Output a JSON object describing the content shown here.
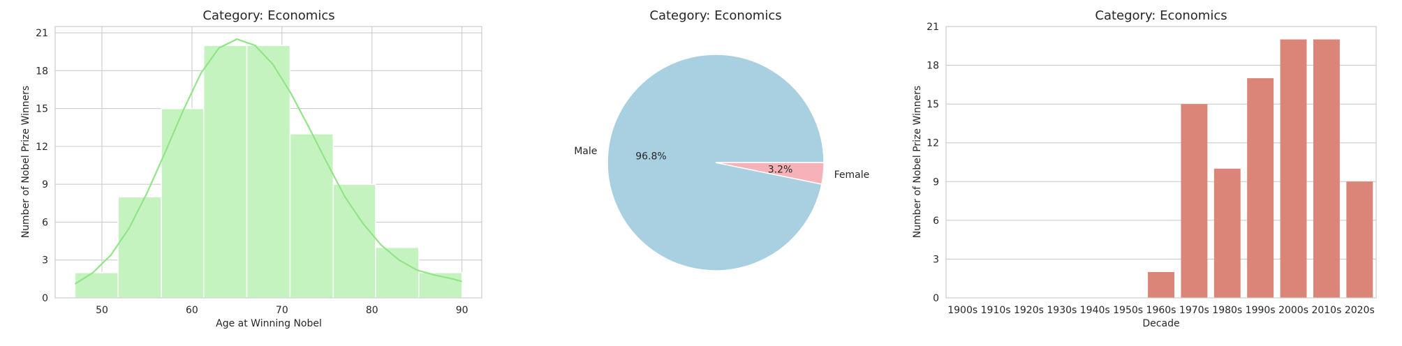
{
  "chart_data": [
    {
      "type": "bar",
      "subtype": "histogram-with-kde",
      "title": "Category: Economics",
      "xlabel": "Age at Winning Nobel",
      "ylabel": "Number of Nobel Prize Winners",
      "bin_edges": [
        47,
        51.8,
        56.6,
        61.3,
        66.1,
        70.9,
        75.7,
        80.4,
        85.2,
        90
      ],
      "values": [
        2,
        8,
        15,
        20,
        20,
        13,
        9,
        4,
        2
      ],
      "kde": {
        "x": [
          47,
          49,
          51,
          53,
          55,
          57,
          59,
          61,
          63,
          65,
          67,
          69,
          71,
          73,
          75,
          77,
          79,
          81,
          83,
          85,
          87,
          89,
          90
        ],
        "y": [
          1.1,
          2.0,
          3.4,
          5.5,
          8.3,
          11.5,
          14.8,
          17.8,
          19.8,
          20.5,
          20.0,
          18.5,
          16.2,
          13.5,
          10.7,
          8.0,
          5.9,
          4.2,
          3.0,
          2.2,
          1.8,
          1.5,
          1.3
        ]
      },
      "xticks": [
        50,
        60,
        70,
        80,
        90
      ],
      "yticks": [
        0,
        3,
        6,
        9,
        12,
        15,
        18,
        21
      ],
      "xlim": [
        44.8,
        92.2
      ],
      "ylim": [
        0,
        21.5
      ],
      "grid": true,
      "colors": {
        "bar": "#c5f3c0",
        "kde": "#90e587"
      }
    },
    {
      "type": "pie",
      "title": "Category: Economics",
      "labels": [
        "Male",
        "Female"
      ],
      "values": [
        96.8,
        3.2
      ],
      "pct_labels": [
        "96.8%",
        "3.2%"
      ],
      "colors": [
        "#a9d0e1",
        "#f7b1b8"
      ]
    },
    {
      "type": "bar",
      "title": "Category: Economics",
      "xlabel": "Decade",
      "ylabel": "Number of Nobel Prize Winners",
      "categories": [
        "1900s",
        "1910s",
        "1920s",
        "1930s",
        "1940s",
        "1950s",
        "1960s",
        "1970s",
        "1980s",
        "1990s",
        "2000s",
        "2010s",
        "2020s"
      ],
      "values": [
        0,
        0,
        0,
        0,
        0,
        0,
        2,
        15,
        10,
        17,
        20,
        20,
        9
      ],
      "yticks": [
        0,
        3,
        6,
        9,
        12,
        15,
        18,
        21
      ],
      "ylim": [
        0,
        21
      ],
      "grid": true,
      "colors": {
        "bar": "#da8577"
      }
    }
  ]
}
